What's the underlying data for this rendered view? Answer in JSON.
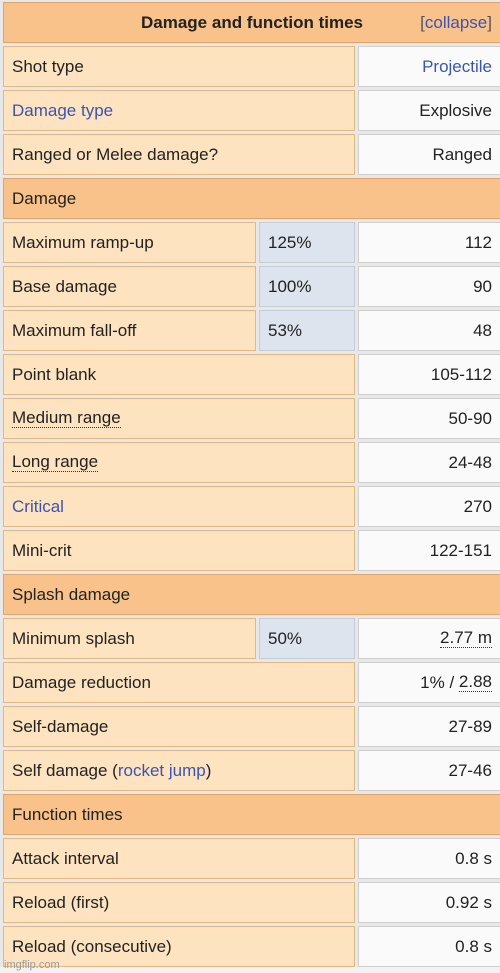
{
  "header": {
    "title": "Damage and function times",
    "bracket_open": "[",
    "collapse": "collapse",
    "bracket_close": "]"
  },
  "rows": {
    "shot_type": {
      "label": "Shot type",
      "value": "Projectile"
    },
    "damage_type": {
      "label": "Damage type",
      "value": "Explosive"
    },
    "ranged_melee": {
      "label": "Ranged or Melee damage?",
      "value": "Ranged"
    }
  },
  "sections": {
    "damage": "Damage",
    "splash": "Splash damage",
    "function_times": "Function times"
  },
  "damage": {
    "max_rampup": {
      "label": "Maximum ramp-up",
      "pct": "125%",
      "value": "112"
    },
    "base": {
      "label": "Base damage",
      "pct": "100%",
      "value": "90"
    },
    "max_falloff": {
      "label": "Maximum fall-off",
      "pct": "53%",
      "value": "48"
    },
    "point_blank": {
      "label": "Point blank",
      "value": "105-112"
    },
    "medium_range": {
      "label": "Medium range",
      "value": "50-90"
    },
    "long_range": {
      "label": "Long range",
      "value": "24-48"
    },
    "critical": {
      "label": "Critical",
      "value": "270"
    },
    "mini_crit": {
      "label": "Mini-crit",
      "value": "122-151"
    }
  },
  "splash": {
    "min_splash": {
      "label": "Minimum splash",
      "pct": "50%",
      "value": "2.77 m"
    },
    "damage_reduction": {
      "label": "Damage reduction",
      "value_prefix": "1% / ",
      "value_link": "2.88"
    },
    "self_damage": {
      "label": "Self-damage",
      "value": "27-89"
    },
    "self_damage_rj": {
      "label_pre": "Self damage (",
      "label_link": "rocket jump",
      "label_post": ")",
      "value": "27-46"
    }
  },
  "function_times": {
    "attack_interval": {
      "label": "Attack interval",
      "value": "0.8 s"
    },
    "reload_first": {
      "label": "Reload (first)",
      "value": "0.92 s"
    },
    "reload_consecutive": {
      "label": "Reload (consecutive)",
      "value": "0.8 s"
    }
  },
  "watermark": "imgflip.com",
  "colors": {
    "header_orange": "#f9c28a",
    "label_peach": "#fde3bf",
    "pct_blue": "#dde4ee",
    "link_blue": "#3a55b0"
  }
}
